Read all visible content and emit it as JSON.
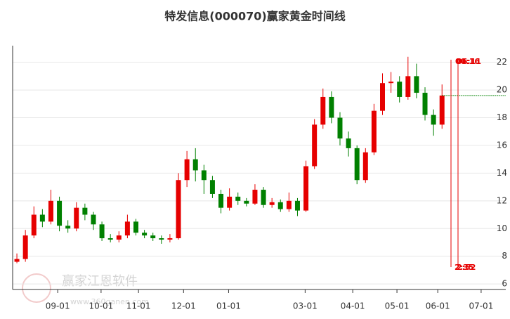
{
  "chart_data": {
    "type": "candlestick",
    "title": "特发信息(000070)赢家黄金时间线",
    "watermark": "赢家江恩软件",
    "watermark_url": "www.360ganen.com",
    "open": [
      7.6,
      7.8,
      9.5,
      11.0,
      10.5,
      12.0,
      10.2,
      10.0,
      11.5,
      11.0,
      10.3,
      9.3,
      9.2,
      9.5,
      10.5,
      9.7,
      9.5,
      9.3,
      9.2,
      9.3,
      13.5,
      15.0,
      14.2,
      13.5,
      12.5,
      11.5,
      12.3,
      12.0,
      11.8,
      12.8,
      11.7,
      11.9,
      11.4,
      12.0,
      11.3,
      14.5,
      17.5,
      19.5,
      18.0,
      16.5,
      15.8,
      13.5,
      15.5,
      18.5,
      20.5,
      20.6,
      19.5,
      21.0,
      19.8,
      18.2,
      17.5
    ],
    "high": [
      8.2,
      9.9,
      11.6,
      11.4,
      12.8,
      12.3,
      10.6,
      11.9,
      11.8,
      11.2,
      10.5,
      9.6,
      9.8,
      11.0,
      10.7,
      9.9,
      9.7,
      9.5,
      9.6,
      14.0,
      15.6,
      15.8,
      14.6,
      13.8,
      12.8,
      12.9,
      12.6,
      12.2,
      13.2,
      13.0,
      12.2,
      12.1,
      12.6,
      12.2,
      14.9,
      17.9,
      20.1,
      19.9,
      18.4,
      17.0,
      16.0,
      15.8,
      19.0,
      21.2,
      21.3,
      21.0,
      22.4,
      21.9,
      20.2,
      18.6,
      20.4
    ],
    "low": [
      7.5,
      7.6,
      9.3,
      10.1,
      10.3,
      9.8,
      9.7,
      9.8,
      10.6,
      9.9,
      9.1,
      9.0,
      9.0,
      9.3,
      9.5,
      9.3,
      9.1,
      8.9,
      9.0,
      9.2,
      13.0,
      13.4,
      12.5,
      12.2,
      11.1,
      11.3,
      11.7,
      11.6,
      11.7,
      11.5,
      11.5,
      11.2,
      11.2,
      10.9,
      11.2,
      14.3,
      17.2,
      17.6,
      16.0,
      15.2,
      13.2,
      13.3,
      15.3,
      18.2,
      19.8,
      19.1,
      19.3,
      19.4,
      17.8,
      16.7,
      17.2
    ],
    "close": [
      7.8,
      9.5,
      11.0,
      10.5,
      12.0,
      10.2,
      10.0,
      11.5,
      11.0,
      10.3,
      9.3,
      9.2,
      9.5,
      10.5,
      9.7,
      9.5,
      9.3,
      9.2,
      9.3,
      13.5,
      15.0,
      14.2,
      13.5,
      12.5,
      11.5,
      12.3,
      12.0,
      11.8,
      12.8,
      11.7,
      11.9,
      11.4,
      12.0,
      11.3,
      14.5,
      17.5,
      19.5,
      18.0,
      16.5,
      15.8,
      13.5,
      15.5,
      18.5,
      20.5,
      20.6,
      19.5,
      21.0,
      19.8,
      18.2,
      17.5,
      19.6
    ],
    "up_color": "#e60000",
    "down_color": "#008000",
    "xlim": [
      -0.5,
      57.5
    ],
    "xticks": [
      {
        "value": 4.8,
        "label": "09-01"
      },
      {
        "value": 9.9,
        "label": "10-01"
      },
      {
        "value": 14.3,
        "label": "11-01"
      },
      {
        "value": 19.6,
        "label": "12-01"
      },
      {
        "value": 24.9,
        "label": "01-01"
      },
      {
        "value": 33.9,
        "label": "03-01"
      },
      {
        "value": 39.5,
        "label": "04-01"
      },
      {
        "value": 44.7,
        "label": "05-01"
      },
      {
        "value": 49.5,
        "label": "06-01"
      },
      {
        "value": 54.6,
        "label": "07-01"
      }
    ],
    "ylim": [
      5.6,
      23.2
    ],
    "yticks": [
      6,
      8,
      10,
      12,
      14,
      16,
      18,
      20,
      22
    ],
    "grid": true,
    "time_lines": [
      {
        "top_label": "00:16",
        "bottom_label": "2:35"
      },
      {
        "top_label": "06:11",
        "bottom_label": "2:52"
      }
    ],
    "time_line_color": "#e60000"
  }
}
